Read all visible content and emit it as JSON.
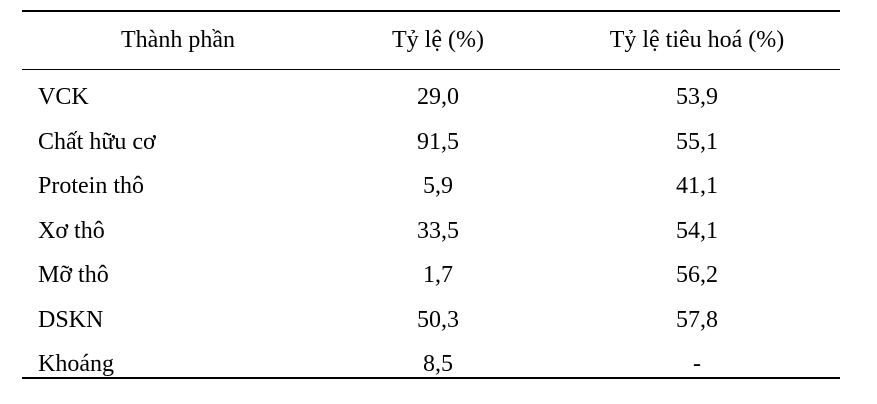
{
  "table": {
    "header": [
      "Thành phần",
      "Tỷ lệ (%)",
      "Tỷ lệ tiêu hoá (%)"
    ],
    "rows": [
      [
        "VCK",
        "29,0",
        "53,9"
      ],
      [
        "Chất hữu cơ",
        "91,5",
        "55,1"
      ],
      [
        "Protein thô",
        "5,9",
        "41,1"
      ],
      [
        "Xơ thô",
        "33,5",
        "54,1"
      ],
      [
        "Mỡ thô",
        "1,7",
        "56,2"
      ],
      [
        "DSKN",
        "50,3",
        "57,8"
      ],
      [
        "Khoáng",
        "8,5",
        "-"
      ]
    ]
  }
}
